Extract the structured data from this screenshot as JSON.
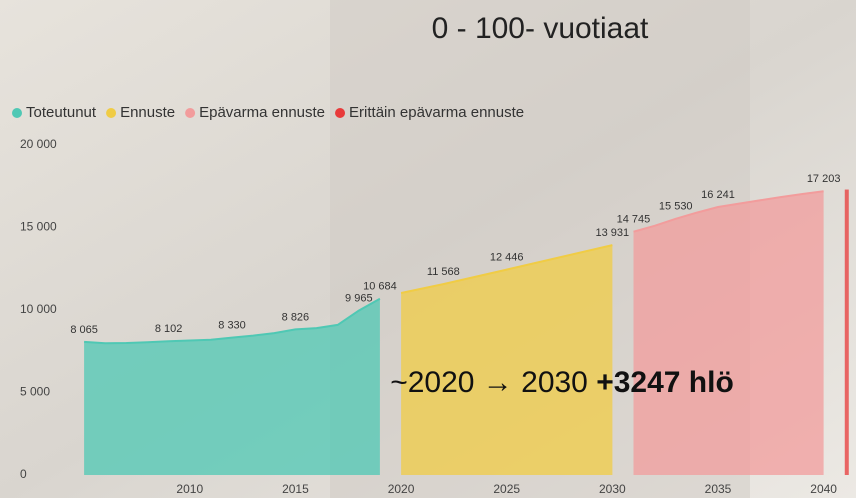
{
  "chart_data": {
    "type": "area",
    "title": "0 - 100- vuotiaat",
    "annotation": {
      "text": "~2020 → 2030",
      "bold": "+3247 hlö"
    },
    "xlim": [
      2004,
      2041.2
    ],
    "xticks": [
      2010,
      2015,
      2020,
      2025,
      2030,
      2035,
      2040
    ],
    "ylim": [
      0,
      20000
    ],
    "yticks": [
      {
        "value": 0,
        "label": "0"
      },
      {
        "value": 5000,
        "label": "5 000"
      },
      {
        "value": 10000,
        "label": "10 000"
      },
      {
        "value": 15000,
        "label": "15 000"
      },
      {
        "value": 20000,
        "label": "20 000"
      }
    ],
    "series": [
      {
        "name": "Toteutunut",
        "color": "#4fc8b4",
        "x": [
          2005,
          2006,
          2007,
          2008,
          2009,
          2010,
          2011,
          2012,
          2013,
          2014,
          2015,
          2016,
          2017,
          2018,
          2019
        ],
        "values": [
          8065,
          7980,
          8000,
          8050,
          8102,
          8150,
          8200,
          8330,
          8450,
          8600,
          8826,
          8900,
          9100,
          9965,
          10684
        ],
        "value_labels": [
          "8 065",
          null,
          null,
          null,
          "8 102",
          null,
          null,
          "8 330",
          null,
          null,
          "8 826",
          null,
          null,
          "9 965",
          "10 684"
        ]
      },
      {
        "name": "Ennuste",
        "color": "#f0cc45",
        "x": [
          2020,
          2022,
          2025,
          2030
        ],
        "values": [
          11030,
          11568,
          12446,
          13931
        ],
        "value_labels": [
          null,
          "11 568",
          "12 446",
          "13 931"
        ]
      },
      {
        "name": "Epävarma ennuste",
        "color": "#f29c9c",
        "x": [
          2031,
          2032,
          2033,
          2034,
          2035,
          2036,
          2037,
          2038,
          2039,
          2040
        ],
        "values": [
          14745,
          15100,
          15530,
          15900,
          16241,
          16450,
          16650,
          16850,
          17030,
          17203
        ],
        "value_labels": [
          "14 745",
          null,
          "15 530",
          null,
          "16 241",
          null,
          null,
          null,
          null,
          "17 203"
        ]
      },
      {
        "name": "Erittäin epävarma ennuste",
        "color": "#e83a3a",
        "x": [
          2041
        ],
        "values": [
          17300
        ]
      }
    ]
  }
}
